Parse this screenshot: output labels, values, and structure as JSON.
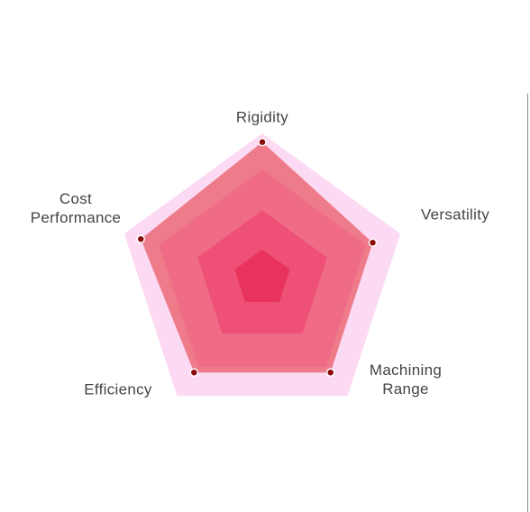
{
  "chart_data": {
    "type": "radar",
    "categories": [
      "Rigidity",
      "Versatility",
      "Machining Range",
      "Efficiency",
      "Cost Performance"
    ],
    "values": [
      94,
      80,
      80,
      80,
      88
    ],
    "color": "#ee7b8a",
    "marker_color": "#8b0a0a",
    "rlim": [
      0,
      100
    ],
    "rticks": [
      20,
      47,
      75,
      100
    ],
    "level_colors": [
      "#e8345c",
      "#ee5078",
      "#f06c86",
      "#fcdaf3"
    ]
  }
}
